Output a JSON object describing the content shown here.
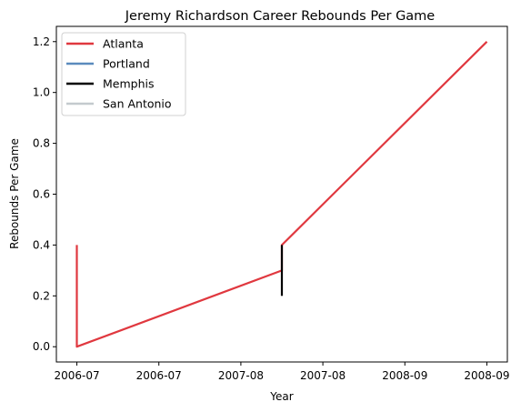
{
  "chart_data": {
    "type": "line",
    "title": "Jeremy Richardson Career Rebounds Per Game",
    "xlabel": "Year",
    "ylabel": "Rebounds Per Game",
    "ylim": [
      -0.06,
      1.26
    ],
    "xlim": [
      -0.05,
      1.05
    ],
    "yticks": [
      0.0,
      0.2,
      0.4,
      0.6,
      0.8,
      1.0,
      1.2
    ],
    "ytick_labels": [
      "0.0",
      "0.2",
      "0.4",
      "0.6",
      "0.8",
      "1.0",
      "1.2"
    ],
    "xticks": [
      0.0,
      0.2,
      0.4,
      0.6,
      0.8,
      1.0
    ],
    "xtick_labels": [
      "2006-07",
      "2006-07",
      "2007-08",
      "2007-08",
      "2008-09",
      "2008-09"
    ],
    "grid": false,
    "legend_position": "upper-left",
    "series": [
      {
        "name": "Atlanta",
        "color": "#e0383f",
        "x": [
          0.0,
          0.0,
          0.5,
          0.5,
          1.0
        ],
        "y": [
          0.4,
          0.0,
          0.3,
          0.4,
          1.2
        ]
      },
      {
        "name": "Portland",
        "color": "#5b8bbd",
        "x": [],
        "y": []
      },
      {
        "name": "Memphis",
        "color": "#000000",
        "x": [
          0.5,
          0.5
        ],
        "y": [
          0.2,
          0.4
        ]
      },
      {
        "name": "San Antonio",
        "color": "#c4cace",
        "x": [],
        "y": []
      }
    ]
  }
}
